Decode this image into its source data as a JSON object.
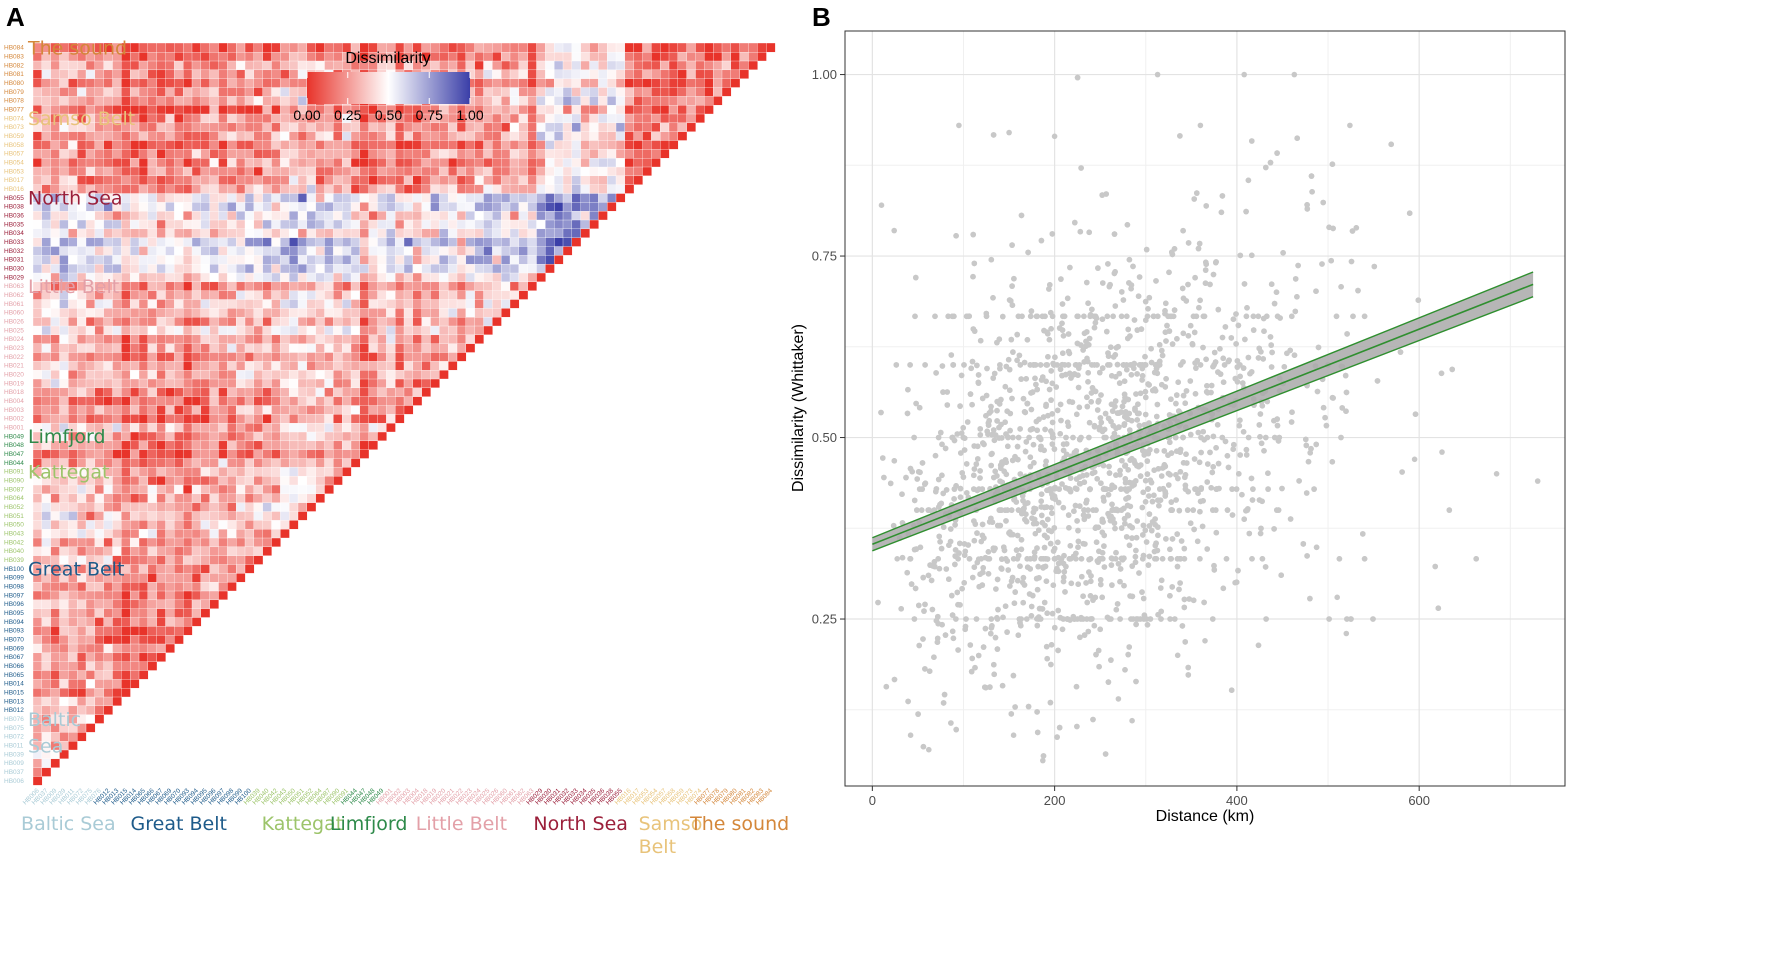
{
  "chart_data": [
    {
      "type": "heatmap",
      "panel": "A",
      "legend": {
        "title": "Dissimilarity",
        "ticks": [
          "0.00",
          "0.25",
          "0.50",
          "0.75",
          "1.00"
        ],
        "colors": {
          "low": "#e8332a",
          "mid": "#ffffff",
          "high": "#3b3fa8"
        },
        "range": [
          0,
          1
        ]
      },
      "diagonal_value": 0.0,
      "row_labels": [
        "HB084",
        "HB083",
        "HB082",
        "HB081",
        "HB080",
        "HB079",
        "HB078",
        "HB077",
        "HB074",
        "HB073",
        "HB059",
        "HB058",
        "HB057",
        "HB054",
        "HB053",
        "HB017",
        "HB016",
        "HB055",
        "HB038",
        "HB036",
        "HB035",
        "HB034",
        "HB033",
        "HB032",
        "HB031",
        "HB030",
        "HB029",
        "HB063",
        "HB062",
        "HB061",
        "HB060",
        "HB026",
        "HB025",
        "HB024",
        "HB023",
        "HB022",
        "HB021",
        "HB020",
        "HB019",
        "HB018",
        "HB004",
        "HB003",
        "HB002",
        "HB001",
        "HB049",
        "HB048",
        "HB047",
        "HB044",
        "HB091",
        "HB090",
        "HB087",
        "HB064",
        "HB052",
        "HB051",
        "HB050",
        "HB043",
        "HB042",
        "HB040",
        "HB039",
        "HB100",
        "HB099",
        "HB098",
        "HB097",
        "HB096",
        "HB095",
        "HB094",
        "HB093",
        "HB070",
        "HB069",
        "HB067",
        "HB066",
        "HB065",
        "HB014",
        "HB015",
        "HB013",
        "HB012",
        "HB076",
        "HB075",
        "HB072",
        "HB011",
        "HB039",
        "HB009",
        "HB037",
        "HB006"
      ],
      "groups": [
        {
          "name": "The sound",
          "color": "#d4873a",
          "rows": 8
        },
        {
          "name": "Samso Belt",
          "color": "#e8c37a",
          "rows": 9
        },
        {
          "name": "North Sea",
          "color": "#9b1f3a",
          "rows": 10
        },
        {
          "name": "Little Belt",
          "color": "#e3a0a8",
          "rows": 17
        },
        {
          "name": "Limfjord",
          "color": "#2e8a4a",
          "rows": 4
        },
        {
          "name": "Kattegat",
          "color": "#9cc46a",
          "rows": 11
        },
        {
          "name": "Great Belt",
          "color": "#1e5b8a",
          "rows": 17
        },
        {
          "name": "Baltic Sea",
          "color": "#a9cbd6",
          "rows": 8
        }
      ],
      "row_group_labels": [
        {
          "text": "The sound",
          "group": 0
        },
        {
          "text": "Samso Belt",
          "group": 1
        },
        {
          "text": "North Sea",
          "group": 2
        },
        {
          "text": "Little Belt",
          "group": 3
        },
        {
          "text": "Limfjord",
          "group": 4
        },
        {
          "text": "Kattegat",
          "group": 5
        },
        {
          "text": "Great Belt",
          "group": 6
        },
        {
          "text": "Baltic",
          "group": 7
        },
        {
          "text": "Sea",
          "group": 7
        }
      ],
      "column_group_labels": [
        {
          "text": "Baltic Sea",
          "group": 7
        },
        {
          "text": "Great Belt",
          "group": 6
        },
        {
          "text": "Kattegat",
          "group": 5
        },
        {
          "text": "Limfjord",
          "group": 4
        },
        {
          "text": "Little Belt",
          "group": 3
        },
        {
          "text": "North Sea",
          "group": 2
        },
        {
          "text": "Samso",
          "group": 1
        },
        {
          "text": "Belt",
          "group": 1
        },
        {
          "text": "The sound",
          "group": 0
        }
      ]
    },
    {
      "type": "scatter",
      "panel": "B",
      "xlabel": "Distance (km)",
      "ylabel": "Dissimilarity (Whittaker)",
      "xlim": [
        -30,
        760
      ],
      "ylim": [
        0.02,
        1.06
      ],
      "x_ticks": [
        0,
        200,
        400,
        600
      ],
      "y_ticks": [
        0.25,
        0.5,
        0.75,
        1.0
      ],
      "grid": true,
      "point_color": "#c8c8c8",
      "n_points_approx": 3400,
      "fit": {
        "type": "linear",
        "x_range": [
          0,
          725
        ],
        "y_start": 0.353,
        "y_end": 0.711,
        "ci_halfwidth_start": 0.009,
        "ci_halfwidth_end": 0.017,
        "line_color": "#2f8f2f",
        "ribbon_color": "#a9a9a9"
      },
      "highlighted_points": [
        {
          "x": 313,
          "y": 1.0
        },
        {
          "x": 408,
          "y": 1.0
        },
        {
          "x": 463,
          "y": 1.0
        },
        {
          "x": 95,
          "y": 0.93
        },
        {
          "x": 360,
          "y": 0.93
        },
        {
          "x": 524,
          "y": 0.93
        },
        {
          "x": 200,
          "y": 0.915
        },
        {
          "x": 150,
          "y": 0.92
        },
        {
          "x": 730,
          "y": 0.44
        },
        {
          "x": 685,
          "y": 0.45
        },
        {
          "x": 625,
          "y": 0.48
        },
        {
          "x": 595,
          "y": 0.47
        },
        {
          "x": 510,
          "y": 0.28
        },
        {
          "x": 525,
          "y": 0.25
        },
        {
          "x": 520,
          "y": 0.23
        },
        {
          "x": 62,
          "y": 0.07
        },
        {
          "x": 155,
          "y": 0.09
        },
        {
          "x": 187,
          "y": 0.055
        },
        {
          "x": 42,
          "y": 0.09
        },
        {
          "x": 270,
          "y": 0.14
        },
        {
          "x": 285,
          "y": 0.11
        },
        {
          "x": 10,
          "y": 0.82
        },
        {
          "x": 24,
          "y": 0.785
        },
        {
          "x": 365,
          "y": 0.22
        },
        {
          "x": 335,
          "y": 0.2
        },
        {
          "x": 398,
          "y": 0.3
        }
      ]
    }
  ]
}
